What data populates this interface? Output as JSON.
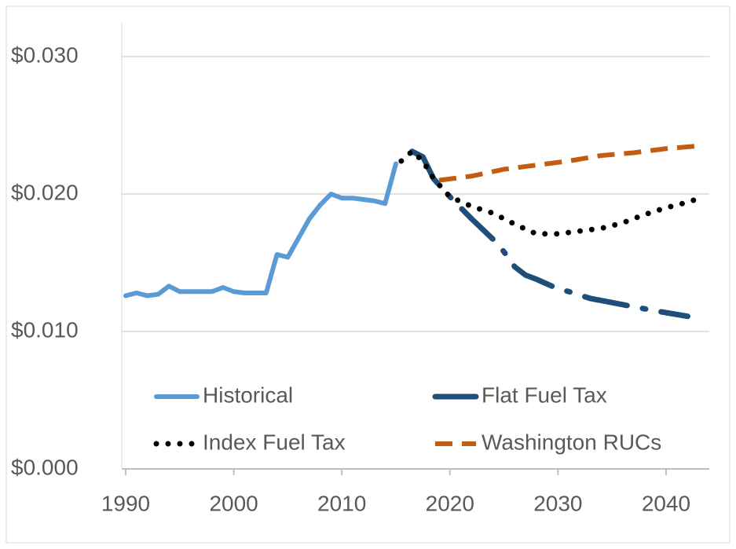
{
  "chart_data": {
    "type": "line",
    "xlim": [
      1990,
      2044
    ],
    "xticks": [
      1990,
      2000,
      2010,
      2020,
      2030,
      2040
    ],
    "ylim": [
      0,
      0.03
    ],
    "yticks": [
      {
        "value": 0,
        "label": "$0.000"
      },
      {
        "value": 0.01,
        "label": "$0.010"
      },
      {
        "value": 0.02,
        "label": "$0.020"
      },
      {
        "value": 0.03,
        "label": "$0.030"
      }
    ],
    "grid": true,
    "legend": "bottom",
    "series": [
      {
        "name": "Historical",
        "color": "#5b9bd5",
        "style": "solid",
        "x": [
          1990,
          1991,
          1992,
          1993,
          1994,
          1995,
          1996,
          1997,
          1998,
          1999,
          2000,
          2001,
          2002,
          2003,
          2004,
          2005,
          2006,
          2007,
          2008,
          2009,
          2010,
          2011,
          2012,
          2013,
          2014,
          2015
        ],
        "values": [
          0.0126,
          0.0128,
          0.0126,
          0.0127,
          0.0133,
          0.0129,
          0.0129,
          0.0129,
          0.0129,
          0.0132,
          0.0129,
          0.0128,
          0.0128,
          0.0128,
          0.0156,
          0.0154,
          0.0168,
          0.0182,
          0.0192,
          0.02,
          0.0197,
          0.0197,
          0.0196,
          0.0195,
          0.0193,
          0.0222
        ]
      },
      {
        "name": "Flat Fuel Tax",
        "color": "#1f4e79",
        "style": "dashdot",
        "x": [
          2016.5,
          2017.5,
          2018.5,
          2020,
          2022,
          2024,
          2025,
          2026,
          2027,
          2028,
          2030,
          2031,
          2033,
          2035,
          2037,
          2039,
          2042
        ],
        "values": [
          0.0231,
          0.0227,
          0.0211,
          0.0198,
          0.0182,
          0.0167,
          0.0158,
          0.0147,
          0.0141,
          0.0138,
          0.0131,
          0.0129,
          0.0124,
          0.0121,
          0.0118,
          0.0115,
          0.0111
        ]
      },
      {
        "name": "Index Fuel Tax",
        "color": "#000000",
        "style": "dotted",
        "x": [
          2015.5,
          2016.5,
          2017.5,
          2018.5,
          2020,
          2022,
          2024,
          2026,
          2028,
          2030,
          2032,
          2034,
          2036,
          2038,
          2040,
          2042,
          2043.5
        ],
        "values": [
          0.0224,
          0.0231,
          0.0224,
          0.0211,
          0.0198,
          0.0191,
          0.0186,
          0.0178,
          0.0171,
          0.0171,
          0.0173,
          0.0175,
          0.0179,
          0.0185,
          0.019,
          0.0194,
          0.0198
        ]
      },
      {
        "name": "Washington RUCs",
        "color": "#c55a11",
        "style": "dashed",
        "x": [
          2019,
          2022,
          2025,
          2028,
          2031,
          2034,
          2037,
          2040,
          2043
        ],
        "values": [
          0.021,
          0.0213,
          0.0218,
          0.0221,
          0.0224,
          0.0228,
          0.023,
          0.0233,
          0.0235
        ]
      }
    ]
  }
}
